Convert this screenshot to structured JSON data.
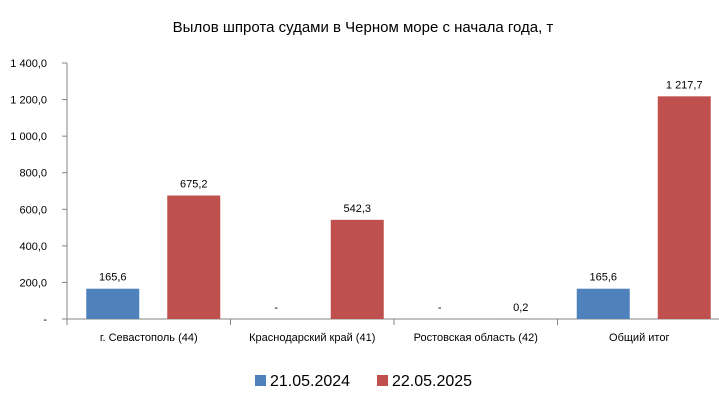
{
  "chart_data": {
    "type": "bar",
    "title": "Вылов шпрота судами в Черном море с начала  года, т",
    "xlabel": "",
    "ylabel": "",
    "ylim": [
      0,
      1400
    ],
    "yticks": [
      0,
      200,
      400,
      600,
      800,
      1000,
      1200,
      1400
    ],
    "ytick_labels": [
      "-",
      "200,0",
      "400,0",
      "600,0",
      "800,0",
      "1 000,0",
      "1 200,0",
      "1 400,0"
    ],
    "categories": [
      "г. Севастополь (44)",
      "Краснодарский край (41)",
      "Ростовская область (42)",
      "Общий итог"
    ],
    "series": [
      {
        "name": "21.05.2024",
        "color": "#4F81BD",
        "values": [
          165.6,
          0,
          0,
          165.6
        ],
        "labels": [
          "165,6",
          "-",
          "-",
          "165,6"
        ]
      },
      {
        "name": "22.05.2025",
        "color": "#C0504D",
        "values": [
          675.2,
          542.3,
          0.2,
          1217.7
        ],
        "labels": [
          "675,2",
          "542,3",
          "0,2",
          "1 217,7"
        ]
      }
    ],
    "grid": false,
    "legend_position": "bottom"
  }
}
